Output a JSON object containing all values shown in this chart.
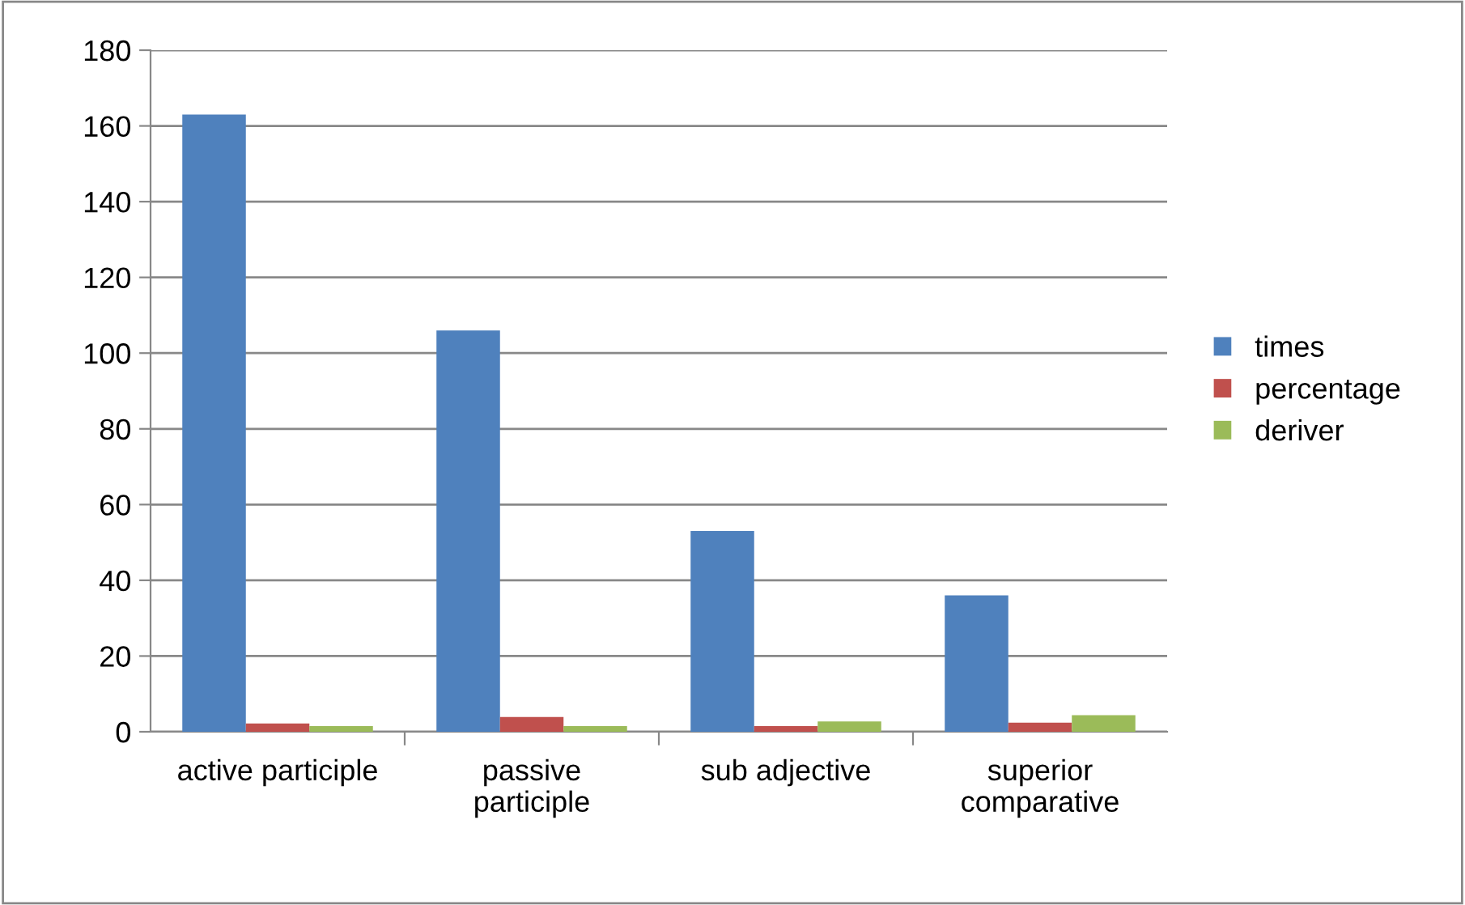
{
  "chart_data": {
    "type": "bar",
    "categories": [
      "active participle",
      "passive\nparticiple",
      "sub adjective",
      "superior\ncomparative"
    ],
    "series": [
      {
        "name": "times",
        "color": "#4f81bd",
        "values": [
          163,
          106,
          53,
          36
        ]
      },
      {
        "name": "percentage",
        "color": "#c0504d",
        "values": [
          2.2,
          3.9,
          1.5,
          2.4
        ]
      },
      {
        "name": "deriver",
        "color": "#9bbb59",
        "values": [
          1.5,
          1.5,
          2.7,
          4.4
        ]
      }
    ],
    "ylim": [
      0,
      180
    ],
    "yticks": [
      0,
      20,
      40,
      60,
      80,
      100,
      120,
      140,
      160,
      180
    ],
    "grid": "y",
    "legend": "right"
  }
}
